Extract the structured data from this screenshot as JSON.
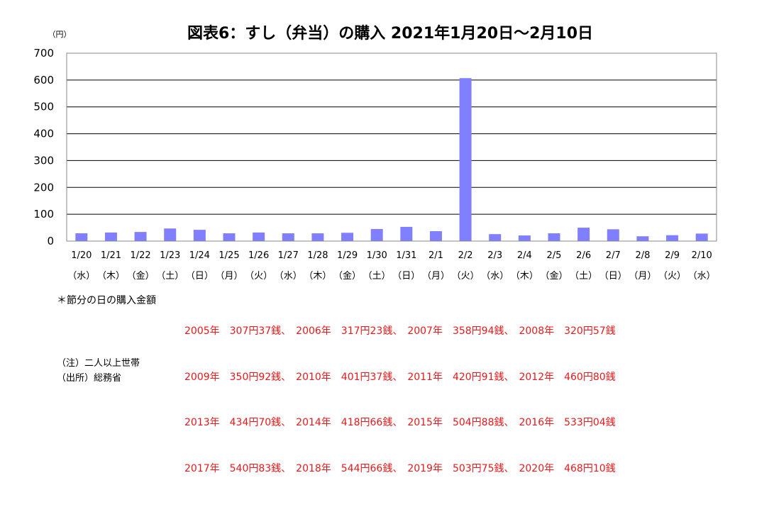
{
  "chart_data": {
    "type": "bar",
    "title": "図表6：すし（弁当）の購入 2021年1月20日～2月10日",
    "unit_label": "（円）",
    "ylim": [
      0,
      700
    ],
    "yticks": [
      0,
      100,
      200,
      300,
      400,
      500,
      600,
      700
    ],
    "grid": true,
    "categories": [
      "1/20",
      "1/21",
      "1/22",
      "1/23",
      "1/24",
      "1/25",
      "1/26",
      "1/27",
      "1/28",
      "1/29",
      "1/30",
      "1/31",
      "2/1",
      "2/2",
      "2/3",
      "2/4",
      "2/5",
      "2/6",
      "2/7",
      "2/8",
      "2/9",
      "2/10"
    ],
    "weekdays": [
      "（水）",
      "（木）",
      "（金）",
      "（土）",
      "（日）",
      "（月）",
      "（火）",
      "（水）",
      "（木）",
      "（金）",
      "（土）",
      "（日）",
      "（月）",
      "（火）",
      "（水）",
      "（木）",
      "（金）",
      "（土）",
      "（日）",
      "（月）",
      "（火）",
      "（水）"
    ],
    "values": [
      29,
      32,
      34,
      47,
      42,
      29,
      32,
      29,
      29,
      31,
      45,
      53,
      37,
      607,
      26,
      21,
      29,
      50,
      44,
      18,
      22,
      28
    ],
    "bar_color": "#8080ff"
  },
  "notes": {
    "setsubun_label": "＊節分の日の購入金額",
    "setsubun_lines": [
      "2005年　307円37銭、　2006年　317円23銭、　2007年　358円94銭、　2008年　320円57銭",
      "2009年　350円92銭、　2010年　401円37銭、　2011年　420円91銭、　2012年　460円80銭",
      "2013年　434円70銭、　2014年　418円66銭、　2015年　504円88銭、　2016年　533円04銭",
      "2017年　540円83銭、　2018年　544円66銭、　2019年　503円75銭、　2020年　468円10銭"
    ],
    "note": "（注）二人以上世帯",
    "source": "（出所）総務省"
  }
}
